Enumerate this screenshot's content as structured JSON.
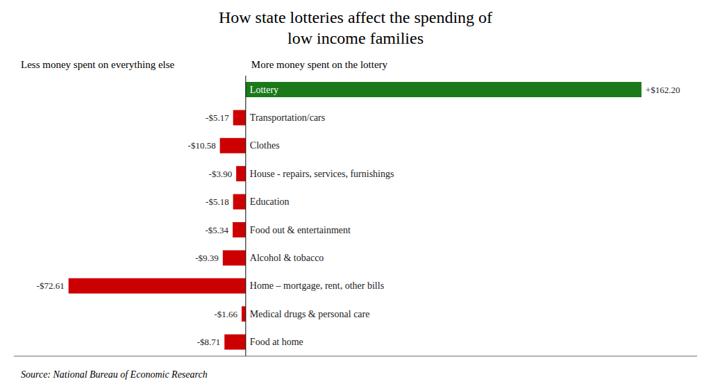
{
  "chart_data": {
    "type": "bar",
    "orientation": "horizontal",
    "title": "How state lotteries affect the spending of\nlow income families",
    "annotations": [
      "Less money spent on everything else",
      "More money spent on the lottery",
      "Source: National Bureau of Economic Research"
    ],
    "categories": [
      "Lottery",
      "Transportation/cars",
      "Clothes",
      "House - repairs, services, furnishings",
      "Education",
      "Food out & entertainment",
      "Alcohol & tobacco",
      "Home – mortgage, rent, other bills",
      "Medical drugs & personal care",
      "Food at home"
    ],
    "values": [
      162.2,
      -5.17,
      -10.58,
      -3.9,
      -5.18,
      -5.34,
      -9.39,
      -72.61,
      -1.66,
      -8.71
    ],
    "value_labels": [
      "+$162.20",
      "-$5.17",
      "-$10.58",
      "-$3.90",
      "-$5.18",
      "-$5.34",
      "-$9.39",
      "-$72.61",
      "-$1.66",
      "-$8.71"
    ],
    "colors": [
      "#1a7a1a",
      "#cc0000",
      "#cc0000",
      "#cc0000",
      "#cc0000",
      "#cc0000",
      "#cc0000",
      "#cc0000",
      "#cc0000",
      "#cc0000"
    ],
    "xlim": [
      -95,
      185
    ],
    "data_labels": true,
    "tick_labels": false,
    "grid": false
  }
}
